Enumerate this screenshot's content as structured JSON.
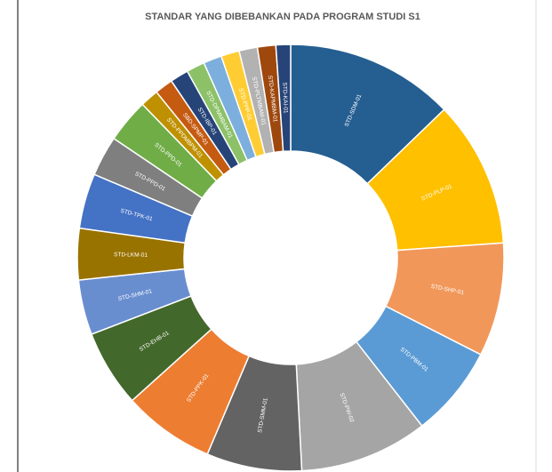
{
  "chart_data": {
    "type": "donut",
    "title": "STANDAR YANG DIBEBANKAN PADA PROGRAM STUDI S1",
    "categories": [
      "STD-SDM-01",
      "STD-PLP-01",
      "STD-SHP-01",
      "STD-PBM-01",
      "STD-PW-02",
      "STD-SMM-01",
      "STD-PPK-01",
      "STD-EHB-01",
      "STD-SHM-01",
      "STD-LKM-01",
      "STD-TPK-01",
      "STD-PPD-01",
      "STD-PPD-01",
      "STD-PPDMBPM-01",
      "SBD-SPMP-01",
      "STD-IBP-01",
      "STD-DPMMBAM-01",
      null,
      "STD-PPP-01",
      "STD-PLTMBAM-01",
      "STD-KAPMBM-01",
      "STD-KAI-01"
    ],
    "values": [
      46,
      40,
      31,
      25,
      35,
      26,
      25,
      21,
      15,
      14,
      15,
      11,
      12,
      5,
      5,
      5,
      5,
      5,
      5,
      5,
      5,
      4
    ],
    "colors": [
      "#255e91",
      "#ffc000",
      "#f1975a",
      "#5b9bd5",
      "#a5a5a5",
      "#636363",
      "#ed7d31",
      "#43682b",
      "#698ed0",
      "#997300",
      "#4472c4",
      "#7f7f7f",
      "#70ad47",
      "#bf9000",
      "#c55a11",
      "#264478",
      "#8cc168",
      "#7cafdd",
      "#ffcd33",
      "#b2b2b2",
      "#9e480e",
      "#264478"
    ]
  }
}
